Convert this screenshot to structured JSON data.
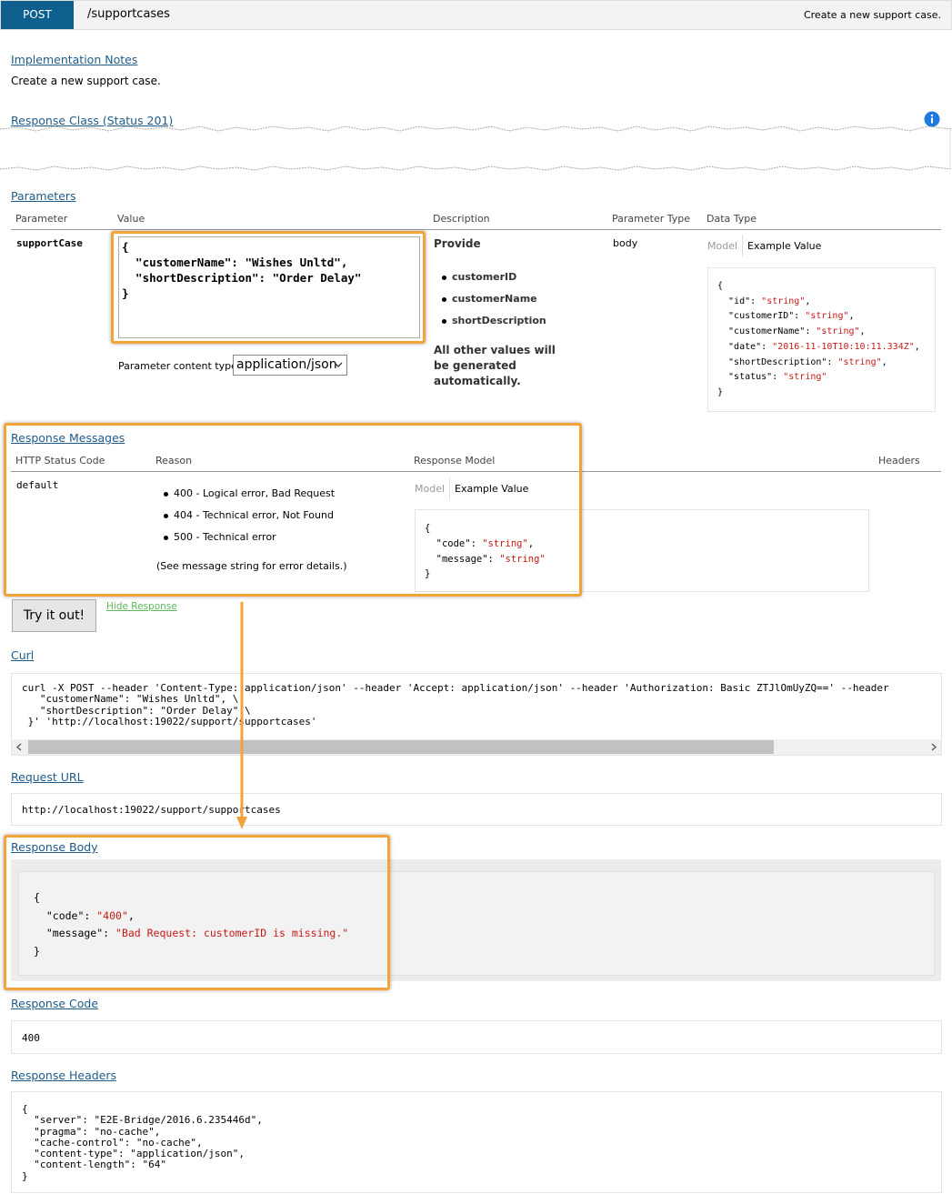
{
  "header": {
    "method": "POST",
    "path": "/supportcases",
    "summary": "Create a new support case."
  },
  "implementation_notes": {
    "title": "Implementation Notes",
    "text": "Create a new support case."
  },
  "response_class": {
    "title": "Response Class (Status 201)"
  },
  "parameters": {
    "title": "Parameters",
    "columns": [
      "Parameter",
      "Value",
      "Description",
      "Parameter Type",
      "Data Type"
    ],
    "rows": [
      {
        "parameter": "supportCase",
        "value": [
          "{",
          "  \"customerName\": \"Wishes Unltd\",",
          "  \"shortDescription\": \"Order Delay\"",
          "}"
        ],
        "content_type_label": "Parameter content type:",
        "content_type": "application/json",
        "description": {
          "title": "Provide",
          "items": [
            "customerID",
            "customerName",
            "shortDescription"
          ],
          "note": "All other values will be generated automatically."
        },
        "parameter_type": "body",
        "data_type": {
          "tabs": [
            "Model",
            "Example Value"
          ],
          "example": [
            "{",
            "  \"id\": \"string\",",
            "  \"customerID\": \"string\",",
            "  \"customerName\": \"string\",",
            "  \"date\": \"2016-11-10T10:10:11.334Z\",",
            "  \"shortDescription\": \"string\",",
            "  \"status\": \"string\"",
            "}"
          ]
        }
      }
    ]
  },
  "response_messages": {
    "title": "Response Messages",
    "columns": [
      "HTTP Status Code",
      "Reason",
      "Response Model",
      "Headers"
    ],
    "rows": [
      {
        "status": "default",
        "reasons": [
          "400 - Logical error, Bad Request",
          "404 - Technical error, Not Found",
          "500 - Technical error"
        ],
        "note": "(See message string for error details.)",
        "model": {
          "tabs": [
            "Model",
            "Example Value"
          ],
          "example": [
            "{",
            "  \"code\": \"string\",",
            "  \"message\": \"string\"",
            "}"
          ]
        }
      }
    ]
  },
  "try_button": "Try it out!",
  "hide_response": "Hide Response",
  "curl": {
    "title": "Curl",
    "lines": [
      "curl -X POST --header 'Content-Type: application/json' --header 'Accept: application/json' --header 'Authorization: Basic ZTJlOmUyZQ==' --header",
      "   \"customerName\": \"Wishes Unltd\", \\",
      "   \"shortDescription\": \"Order Delay\" \\",
      " }' 'http://localhost:19022/support/supportcases'"
    ]
  },
  "request_url": {
    "title": "Request URL",
    "value": "http://localhost:19022/support/supportcases"
  },
  "response_body": {
    "title": "Response Body",
    "lines": [
      "{",
      "  \"code\": \"400\",",
      "  \"message\": \"Bad Request: customerID is missing.\"",
      "}"
    ]
  },
  "response_code": {
    "title": "Response Code",
    "value": "400"
  },
  "response_headers": {
    "title": "Response Headers",
    "lines": [
      "{",
      "  \"server\": \"E2E-Bridge/2016.6.235446d\",",
      "  \"pragma\": \"no-cache\",",
      "  \"cache-control\": \"no-cache\",",
      "  \"content-type\": \"application/json\",",
      "  \"content-length\": \"64\"",
      "}"
    ]
  }
}
